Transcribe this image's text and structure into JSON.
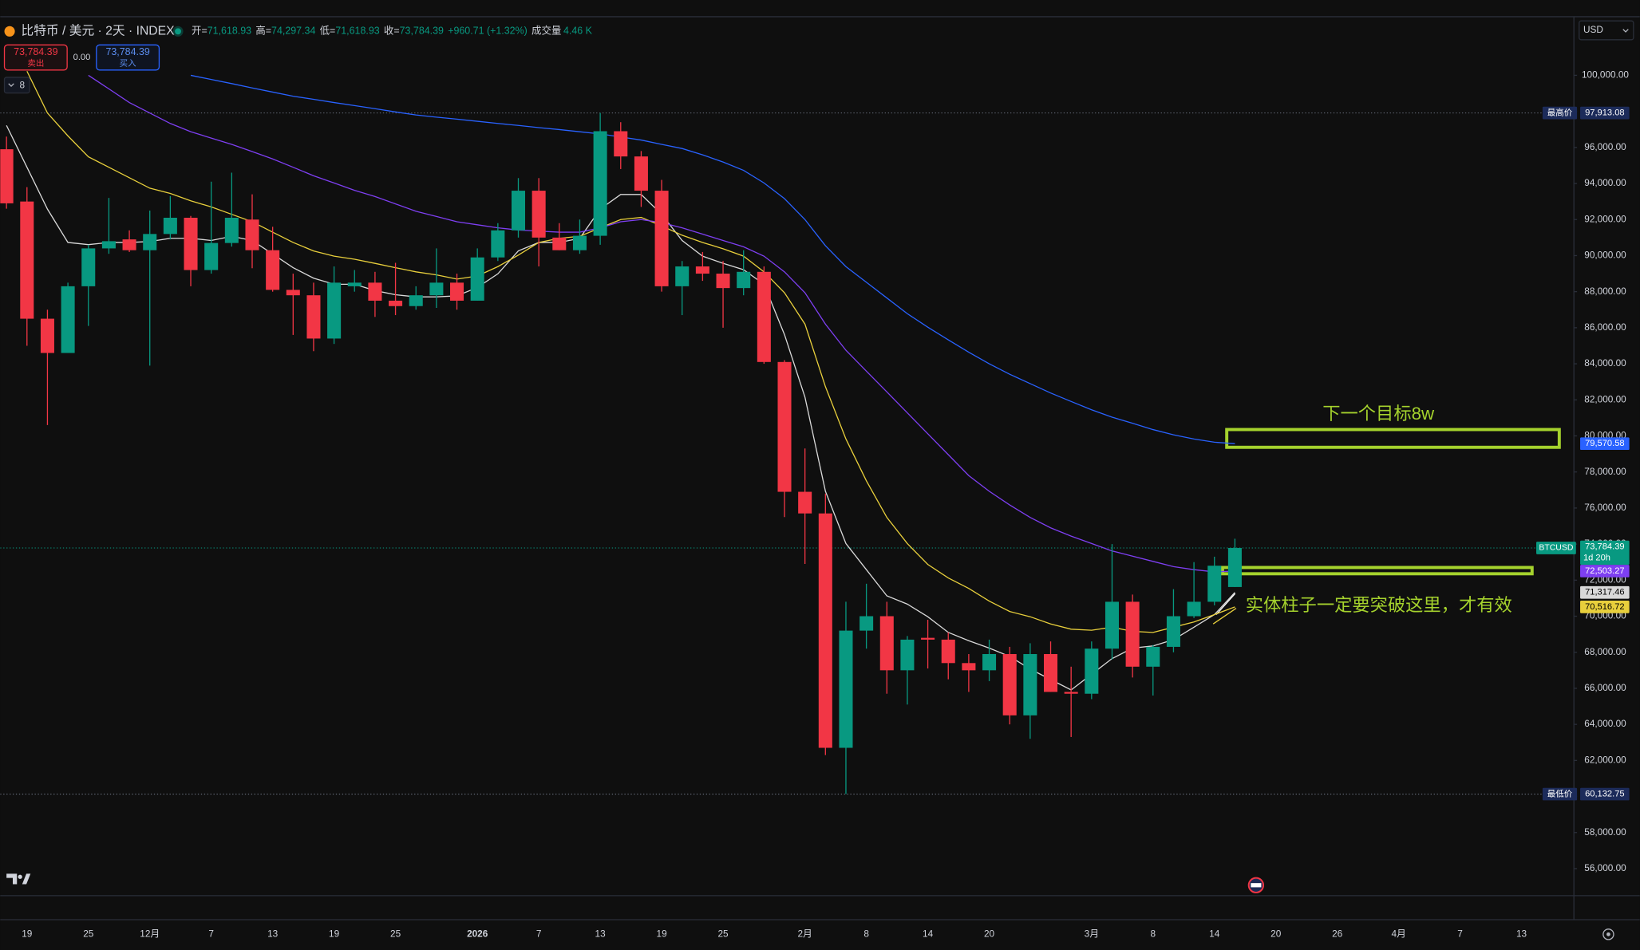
{
  "header": {
    "symbol": "比特币 / 美元 · 2天 · INDEX",
    "stats": [
      {
        "label": "开=",
        "value": "71,618.93"
      },
      {
        "label": "高=",
        "value": "74,297.34"
      },
      {
        "label": "低=",
        "value": "71,618.93"
      },
      {
        "label": "收=",
        "value": "73,784.39"
      }
    ],
    "change": "+960.71 (+1.32%)",
    "volume_label": "成交量",
    "volume": "4.46 K"
  },
  "trade": {
    "sell_price": "73,784.39",
    "sell": "卖出",
    "spread": "0.00",
    "buy_price": "73,784.39",
    "buy": "买入"
  },
  "indicators_count": "8",
  "currency": "USD",
  "chart_data": {
    "type": "candlestick",
    "categories": [
      null,
      "19",
      null,
      null,
      "25",
      null,
      null,
      "12月",
      null,
      null,
      "7",
      null,
      null,
      "13",
      null,
      null,
      "19",
      null,
      null,
      "25",
      null,
      null,
      null,
      "2026",
      null,
      null,
      "7",
      null,
      null,
      "13",
      null,
      null,
      "19",
      null,
      null,
      "25",
      null,
      null,
      null,
      "2月",
      null,
      null,
      "8",
      null,
      null,
      "14",
      null,
      null,
      "20",
      null,
      null,
      null,
      null,
      "3月",
      null,
      null,
      "8",
      null,
      null,
      "14",
      null,
      null,
      "20",
      null,
      null,
      "26",
      null,
      null,
      "4月",
      null,
      null,
      "7",
      null,
      null,
      "13",
      null
    ],
    "open": [
      95900,
      93000,
      86500,
      84600,
      88300,
      90400,
      90900,
      90300,
      91200,
      92100,
      89200,
      90700,
      92000,
      90300,
      88100,
      87800,
      85400,
      88300,
      88500,
      87500,
      87200,
      87800,
      88500,
      87500,
      89900,
      91400,
      93600,
      91000,
      90300,
      91100,
      96900,
      95500,
      93600,
      88300,
      89400,
      89000,
      88200,
      89100,
      84100,
      76900,
      75700,
      62700,
      69200,
      70000,
      67000,
      68800,
      68700,
      67400,
      67000,
      67900,
      64500,
      67900,
      65800,
      65700,
      68200,
      70800,
      67200,
      68300,
      70000,
      70800,
      71618.93,
      null,
      null,
      null,
      null,
      null,
      null,
      null,
      null,
      null,
      null,
      null,
      null,
      null,
      null,
      null
    ],
    "high": [
      96600,
      93800,
      87000,
      88500,
      90600,
      93200,
      91400,
      92500,
      93300,
      92200,
      94100,
      94600,
      93400,
      91600,
      89000,
      88500,
      89400,
      89200,
      89100,
      89600,
      88300,
      90400,
      89000,
      90400,
      91800,
      94300,
      94300,
      91800,
      92000,
      97913.08,
      97400,
      95800,
      94200,
      89700,
      90200,
      89700,
      90300,
      89400,
      84200,
      79300,
      76800,
      70800,
      71800,
      70800,
      68900,
      69800,
      69100,
      67900,
      68700,
      68300,
      68500,
      68600,
      67200,
      68600,
      74000,
      71200,
      68400,
      71500,
      73000,
      73300,
      74297.34,
      null,
      null,
      null,
      null,
      null,
      null,
      null,
      null,
      null,
      null,
      null,
      null,
      null,
      null,
      null
    ],
    "low": [
      92600,
      85000,
      80600,
      84600,
      86100,
      90100,
      90200,
      83900,
      90900,
      88300,
      89000,
      90500,
      89300,
      88000,
      85600,
      84700,
      85100,
      88000,
      86600,
      86700,
      87000,
      87100,
      87000,
      87500,
      89700,
      91000,
      89400,
      90300,
      90100,
      90600,
      94800,
      92700,
      88000,
      86700,
      88600,
      86000,
      87800,
      84000,
      75500,
      72900,
      62300,
      60132.75,
      68200,
      65700,
      65100,
      67100,
      66500,
      65800,
      66400,
      64000,
      63200,
      65800,
      63300,
      65400,
      67600,
      66600,
      65600,
      68000,
      69900,
      70600,
      71618.93,
      null,
      null,
      null,
      null,
      null,
      null,
      null,
      null,
      null,
      null,
      null,
      null,
      null,
      null,
      null
    ],
    "close": [
      92900,
      86500,
      84600,
      88300,
      90400,
      90800,
      90300,
      91200,
      92100,
      89200,
      90700,
      92100,
      90300,
      88100,
      87800,
      85400,
      88500,
      88500,
      87500,
      87200,
      87800,
      88500,
      87500,
      89900,
      91400,
      93600,
      91000,
      90300,
      91100,
      96900,
      95500,
      93600,
      88300,
      89400,
      89000,
      88200,
      89100,
      84100,
      76900,
      75700,
      62700,
      69200,
      70000,
      67000,
      68700,
      68700,
      67400,
      67000,
      67900,
      64500,
      67900,
      65800,
      65700,
      68200,
      70800,
      67200,
      68300,
      70000,
      70800,
      72800,
      73784.39,
      null,
      null,
      null,
      null,
      null,
      null,
      null,
      null,
      null,
      null,
      null,
      null,
      null,
      null,
      null
    ],
    "up_color": "#089981",
    "down_color": "#f23645",
    "series": [
      {
        "color": "#d9d9d9",
        "end_label": "71,317.46",
        "values": [
          97220,
          94900,
          92580,
          90730,
          90610,
          90730,
          90730,
          90780,
          90960,
          90960,
          90840,
          91070,
          90840,
          90090,
          89330,
          88750,
          88410,
          88410,
          88060,
          87830,
          87710,
          87710,
          87770,
          88230,
          88990,
          90260,
          90730,
          90730,
          90960,
          92580,
          93390,
          93390,
          92290,
          90840,
          89970,
          89570,
          89220,
          88410,
          85620,
          82150,
          76930,
          74030,
          72580,
          71130,
          70670,
          69970,
          69100,
          68640,
          68230,
          67770,
          67070,
          66490,
          65910,
          66780,
          67650,
          68230,
          68350,
          68700,
          69390,
          70090,
          71317.46,
          null,
          null,
          null,
          null,
          null,
          null,
          null,
          null,
          null,
          null,
          null,
          null,
          null,
          null,
          null
        ]
      },
      {
        "color": "#e8cf3c",
        "end_label": "70,516.72",
        "values": [
          null,
          100230,
          97910,
          96640,
          95480,
          94900,
          94320,
          93740,
          93450,
          93040,
          92700,
          92290,
          91880,
          91300,
          90730,
          90260,
          89970,
          89800,
          89570,
          89330,
          89100,
          88930,
          88700,
          88870,
          89390,
          90030,
          90730,
          90960,
          91070,
          91540,
          92000,
          92120,
          91650,
          91130,
          90730,
          90380,
          89970,
          89100,
          87940,
          86200,
          82730,
          79830,
          77510,
          75480,
          74030,
          72870,
          72120,
          71540,
          70840,
          70260,
          69970,
          69570,
          69280,
          69220,
          69390,
          69160,
          69100,
          69390,
          69680,
          70090,
          70516.72,
          null,
          null,
          null,
          null,
          null,
          null,
          null,
          null,
          null,
          null,
          null,
          null,
          null,
          null,
          null
        ]
      },
      {
        "color": "#7e3ff2",
        "end_label": "72,503.27",
        "values": [
          null,
          null,
          null,
          null,
          100000,
          99250,
          98490,
          97910,
          97330,
          96870,
          96520,
          96170,
          95770,
          95360,
          94900,
          94430,
          94030,
          93620,
          93280,
          92870,
          92460,
          92170,
          91880,
          91710,
          91540,
          91420,
          91360,
          91300,
          91300,
          91540,
          91880,
          92000,
          91830,
          91540,
          91190,
          90840,
          90490,
          89970,
          89100,
          87940,
          86200,
          84750,
          83590,
          82440,
          81280,
          80120,
          78960,
          77800,
          76930,
          76170,
          75480,
          74900,
          74440,
          74030,
          73620,
          73330,
          73040,
          72750,
          72580,
          72460,
          72503.27,
          null,
          null,
          null,
          null,
          null,
          null,
          null,
          null,
          null,
          null,
          null,
          null,
          null,
          null,
          null
        ]
      },
      {
        "color": "#2962ff",
        "end_label": "79,570.58",
        "values": [
          null,
          null,
          null,
          null,
          null,
          null,
          null,
          null,
          null,
          100000,
          99770,
          99540,
          99300,
          99070,
          98840,
          98670,
          98490,
          98320,
          98150,
          97970,
          97800,
          97680,
          97570,
          97450,
          97330,
          97220,
          97100,
          96990,
          96870,
          96750,
          96580,
          96410,
          96170,
          95940,
          95590,
          95190,
          94730,
          94030,
          93160,
          92000,
          90550,
          89390,
          88520,
          87650,
          86780,
          86030,
          85330,
          84640,
          84000,
          83420,
          82900,
          82380,
          81910,
          81450,
          81040,
          80700,
          80350,
          80060,
          79830,
          79650,
          79570.58,
          null,
          null,
          null,
          null,
          null,
          null,
          null,
          null,
          null,
          null,
          null,
          null,
          null,
          null,
          null
        ]
      }
    ],
    "ylim": [
      54500,
      103250
    ],
    "yticks": [
      {
        "value": 56000,
        "label": "56,000.00"
      },
      {
        "value": 58000,
        "label": "58,000.00"
      },
      {
        "value": 60000,
        "label": "60,000.00"
      },
      {
        "value": 62000,
        "label": "62,000.00"
      },
      {
        "value": 64000,
        "label": "64,000.00"
      },
      {
        "value": 66000,
        "label": "66,000.00"
      },
      {
        "value": 68000,
        "label": "68,000.00"
      },
      {
        "value": 70000,
        "label": "70,000.00"
      },
      {
        "value": 72000,
        "label": "72,000.00"
      },
      {
        "value": 74000,
        "label": "74,000.00"
      },
      {
        "value": 76000,
        "label": "76,000.00"
      },
      {
        "value": 78000,
        "label": "78,000.00"
      },
      {
        "value": 80000,
        "label": "80,000.00"
      },
      {
        "value": 82000,
        "label": "82,000.00"
      },
      {
        "value": 84000,
        "label": "84,000.00"
      },
      {
        "value": 86000,
        "label": "86,000.00"
      },
      {
        "value": 88000,
        "label": "88,000.00"
      },
      {
        "value": 90000,
        "label": "90,000.00"
      },
      {
        "value": 92000,
        "label": "92,000.00"
      },
      {
        "value": 94000,
        "label": "94,000.00"
      },
      {
        "value": 96000,
        "label": "96,000.00"
      },
      {
        "value": 98000,
        "label": "98,000.00"
      },
      {
        "value": 100000,
        "label": "100,000.00"
      }
    ],
    "price_lines": [
      {
        "label": "最高价",
        "value": 97913.08,
        "value_label": "97,913.08",
        "color": "#1c2b5a"
      },
      {
        "label": "最低价",
        "value": 60132.75,
        "value_label": "60,132.75",
        "color": "#1c2b5a"
      }
    ],
    "last_price": {
      "symbol": "BTCUSD",
      "value": 73784.39,
      "value_label": "73,784.39",
      "countdown": "1d 20h",
      "color": "#089981"
    },
    "annotations": [
      {
        "text": "下一个目标8w"
      },
      {
        "text": "实体柱子一定要突破这里，才有效"
      }
    ],
    "annotation_color": "#a5d22d"
  }
}
